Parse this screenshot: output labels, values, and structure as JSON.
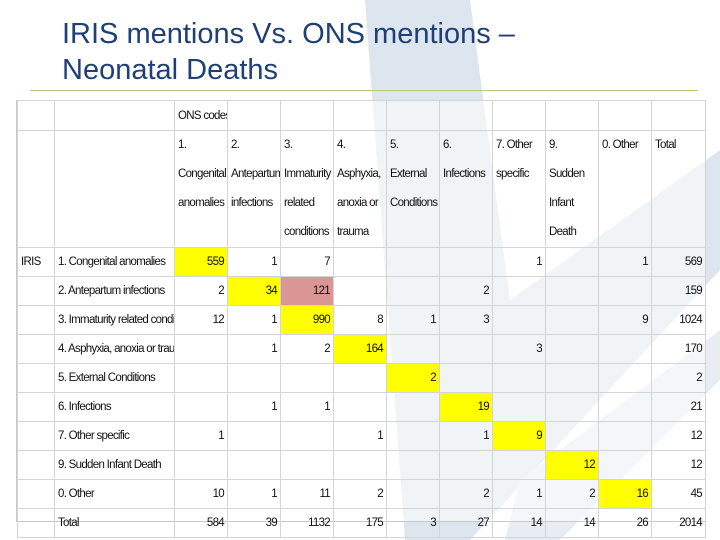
{
  "title": {
    "line1": "IRIS mentions Vs. ONS mentions –",
    "line2": "Neonatal Deaths"
  },
  "table": {
    "ons_label": "ONS codes",
    "row_group_label": "IRIS",
    "columns": [
      [
        "1. Congenital",
        "anomalies"
      ],
      [
        "2. Antepartum",
        "infections"
      ],
      [
        "3. Immaturity",
        "related",
        "conditions"
      ],
      [
        "4. Asphyxia,",
        "anoxia or",
        "trauma"
      ],
      [
        "5. External",
        "Conditions"
      ],
      [
        "6. Infections"
      ],
      [
        "7. Other",
        "specific"
      ],
      [
        "9. Sudden",
        "Infant Death"
      ],
      [
        "0. Other"
      ],
      [
        "Total"
      ]
    ],
    "rows": [
      {
        "label": "1. Congenital anomalies",
        "values": [
          "559",
          "1",
          "7",
          "",
          "",
          "",
          "1",
          "",
          "1",
          "569"
        ]
      },
      {
        "label": "2. Antepartum infections",
        "values": [
          "2",
          "34",
          "121",
          "",
          "",
          "2",
          "",
          "",
          "",
          "159"
        ]
      },
      {
        "label": "3. Immaturity related conditions",
        "values": [
          "12",
          "1",
          "990",
          "8",
          "1",
          "3",
          "",
          "",
          "9",
          "1024"
        ]
      },
      {
        "label": "4. Asphyxia, anoxia or trauma",
        "values": [
          "",
          "1",
          "2",
          "164",
          "",
          "",
          "3",
          "",
          "",
          "170"
        ]
      },
      {
        "label": "5. External Conditions",
        "values": [
          "",
          "",
          "",
          "",
          "2",
          "",
          "",
          "",
          "",
          "2"
        ]
      },
      {
        "label": "6. Infections",
        "values": [
          "",
          "1",
          "1",
          "",
          "",
          "19",
          "",
          "",
          "",
          "21"
        ]
      },
      {
        "label": "7. Other specific",
        "values": [
          "1",
          "",
          "",
          "1",
          "",
          "1",
          "9",
          "",
          "",
          "12"
        ]
      },
      {
        "label": "9. Sudden Infant Death",
        "values": [
          "",
          "",
          "",
          "",
          "",
          "",
          "",
          "12",
          "",
          "12"
        ]
      },
      {
        "label": "0. Other",
        "values": [
          "10",
          "1",
          "11",
          "2",
          "",
          "2",
          "1",
          "2",
          "16",
          "45"
        ]
      },
      {
        "label": "Total",
        "values": [
          "584",
          "39",
          "1132",
          "175",
          "3",
          "27",
          "14",
          "14",
          "26",
          "2014"
        ]
      }
    ],
    "highlight_color": "#ffff00",
    "highlight_alt_color": "#d99694"
  },
  "colors": {
    "title": "#1f3f78",
    "rule": "#b9c77a",
    "watermark": "#dde6ee"
  }
}
